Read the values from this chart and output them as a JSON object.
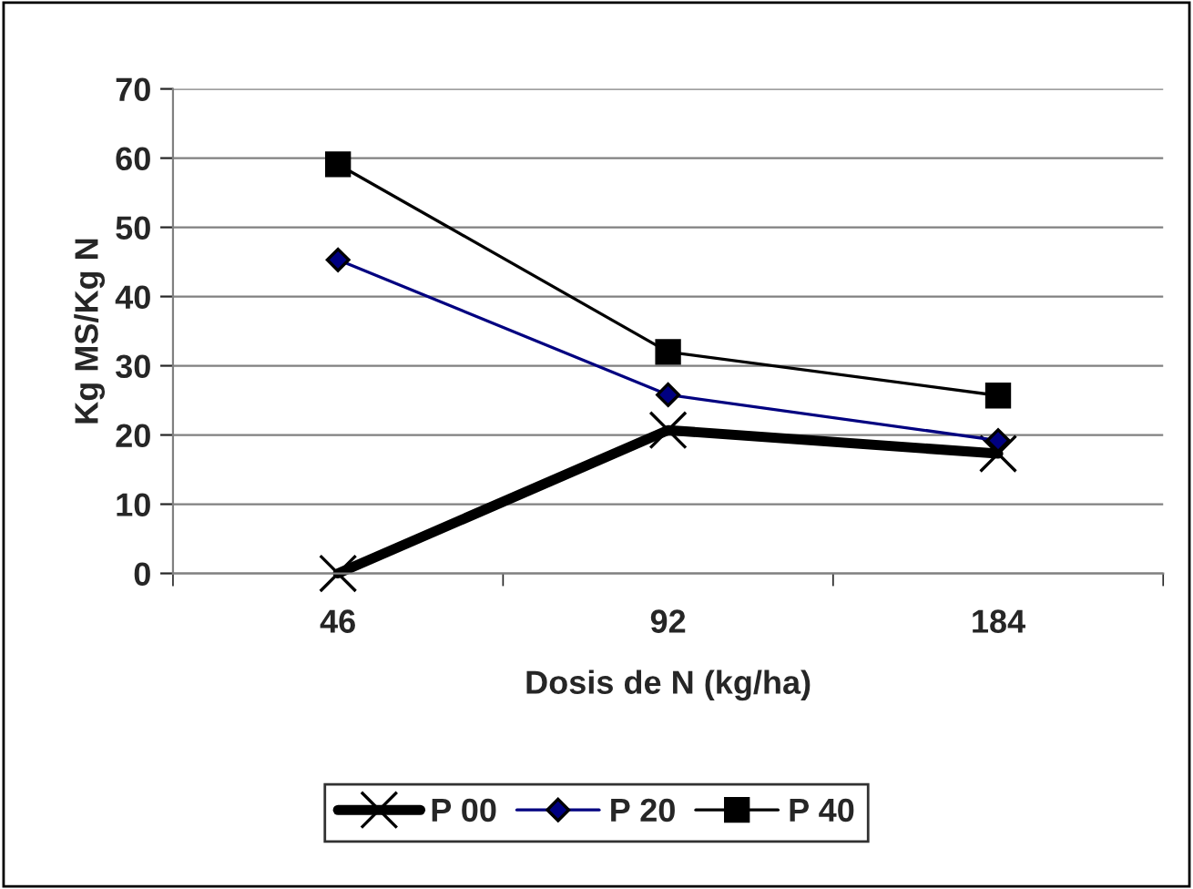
{
  "chart_data": {
    "type": "line",
    "xlabel": "Dosis de N (kg/ha)",
    "ylabel": "Kg MS/Kg N",
    "categories": [
      "46",
      "92",
      "184"
    ],
    "series": [
      {
        "name": "P 00",
        "color": "#000000",
        "marker": "cross",
        "values": [
          0,
          20.7,
          17.3
        ]
      },
      {
        "name": "P 20",
        "color": "#000080",
        "marker": "diamond",
        "values": [
          45.3,
          25.8,
          19.2
        ]
      },
      {
        "name": "P 40",
        "color": "#000000",
        "marker": "square",
        "values": [
          59.1,
          32.0,
          25.7
        ]
      }
    ],
    "ylim": [
      0,
      70
    ],
    "yticks": [
      0,
      10,
      20,
      30,
      40,
      50,
      60,
      70
    ],
    "grid": "y",
    "legend": "bottom"
  }
}
